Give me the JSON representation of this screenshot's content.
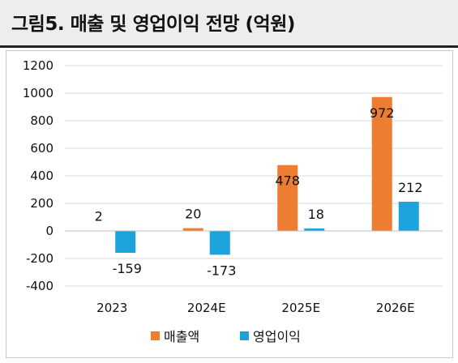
{
  "header": {
    "title": "그림5. 매출 및 영업이익 전망 (억원)"
  },
  "chart_data": {
    "type": "bar",
    "title": "그림5. 매출 및 영업이익 전망 (억원)",
    "categories": [
      "2023",
      "2024E",
      "2025E",
      "2026E"
    ],
    "series": [
      {
        "name": "매출액",
        "values": [
          2,
          20,
          478,
          972
        ],
        "color": "#ED7D31"
      },
      {
        "name": "영업이익",
        "values": [
          -159,
          -173,
          18,
          212
        ],
        "color": "#1CA3DC"
      }
    ],
    "ylim": [
      -400,
      1200
    ],
    "yticks": [
      -400,
      -200,
      0,
      200,
      400,
      600,
      800,
      1000,
      1200
    ],
    "grid": true,
    "legend": "bottom"
  }
}
